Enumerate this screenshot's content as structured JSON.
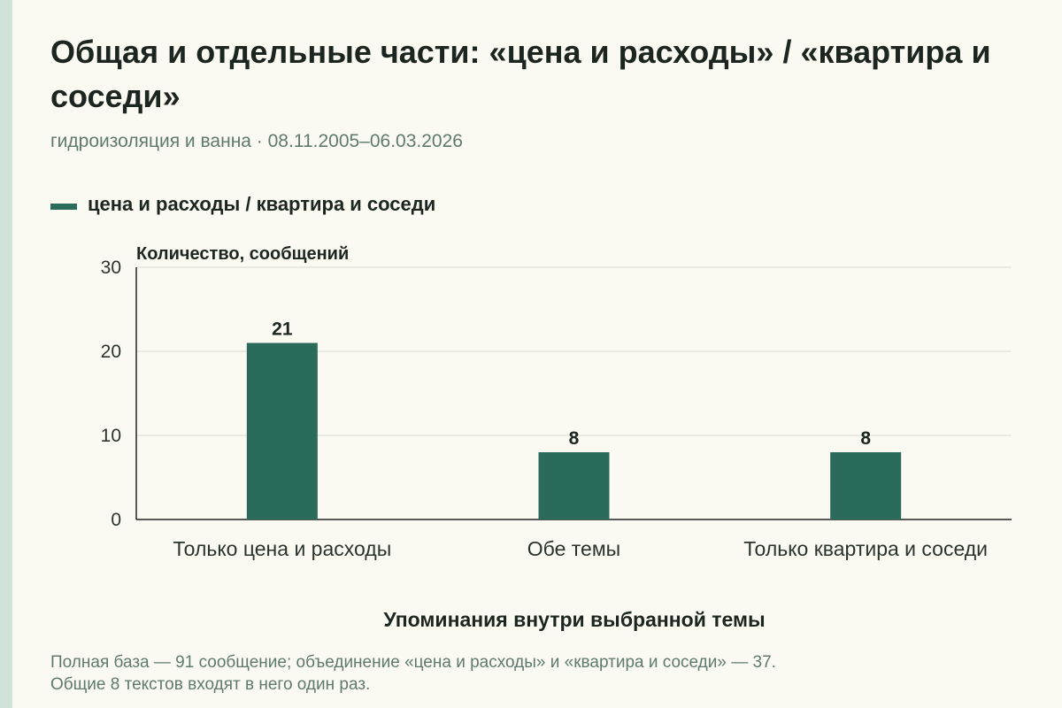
{
  "header": {
    "title": "Общая и отдельные части: «цена и расходы» / «квартира и соседи»",
    "subtitle": "гидроизоляция и ванна · 08.11.2005–06.03.2026"
  },
  "legend": {
    "label": "цена и расходы / квартира и соседи",
    "color": "#2a6b5c"
  },
  "chart_data": {
    "type": "bar",
    "categories": [
      "Только цена и расходы",
      "Обе темы",
      "Только квартира и соседи"
    ],
    "series": [
      {
        "name": "цена и расходы / квартира и соседи",
        "values": [
          21,
          8,
          8
        ]
      }
    ],
    "ylabel": "Количество, сообщений",
    "xlabel": "Упоминания внутри выбранной темы",
    "ylim": [
      0,
      30
    ],
    "yticks": [
      0,
      10,
      20,
      30
    ],
    "grid": true,
    "legend_position": "top-left",
    "bar_color": "#2a6b5c"
  },
  "footnote": {
    "line1": "Полная база — 91 сообщение; объединение «цена и расходы» и «квартира и соседи» — 37.",
    "line2": "Общие 8 текстов входят в него один раз."
  }
}
